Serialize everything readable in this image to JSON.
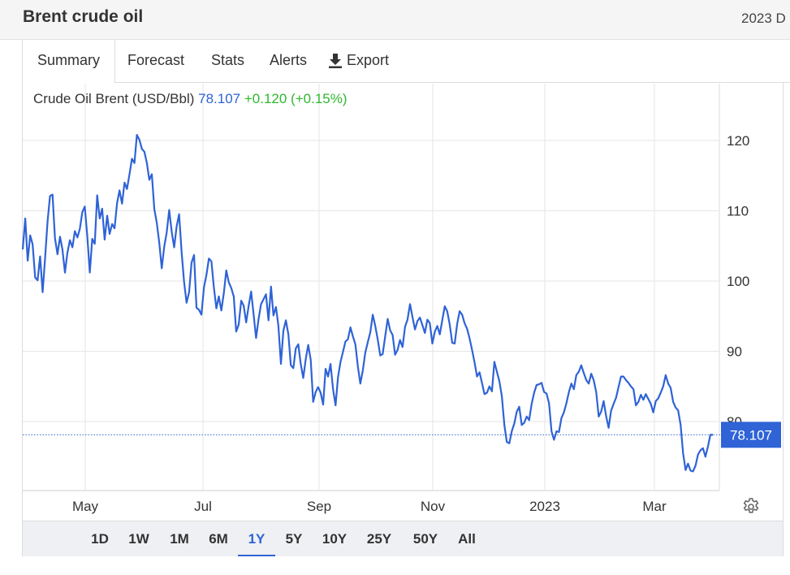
{
  "header": {
    "title": "Brent crude oil",
    "right_text": "2023 D"
  },
  "tabs": [
    {
      "label": "Summary"
    },
    {
      "label": "Forecast"
    },
    {
      "label": "Stats"
    },
    {
      "label": "Alerts"
    },
    {
      "label": "Export"
    }
  ],
  "legend": {
    "name": "Crude Oil Brent (USD/Bbl)",
    "price": "78.107",
    "change": "+0.120 (+0.15%)"
  },
  "ranges": [
    {
      "label": "1D"
    },
    {
      "label": "1W"
    },
    {
      "label": "1M"
    },
    {
      "label": "6M"
    },
    {
      "label": "1Y"
    },
    {
      "label": "5Y"
    },
    {
      "label": "10Y"
    },
    {
      "label": "25Y"
    },
    {
      "label": "50Y"
    },
    {
      "label": "All"
    }
  ],
  "active_range": "1Y",
  "colors": {
    "line": "#2f63d6",
    "price_label_bg": "#2f63d6",
    "change": "#2eb82e",
    "grid": "#e6e6e6"
  },
  "chart_data": {
    "type": "line",
    "title": "Crude Oil Brent (USD/Bbl)",
    "x_tick_labels": [
      "May",
      "Jul",
      "Sep",
      "Nov",
      "2023",
      "Mar"
    ],
    "y_tick_labels": [
      "80",
      "90",
      "100",
      "110",
      "120"
    ],
    "ylim": [
      70,
      130
    ],
    "grid": true,
    "last_value_label": "78.107",
    "series": [
      {
        "name": "Crude Oil Brent (USD/Bbl)",
        "x_range": [
          0,
          100
        ],
        "values": [
          104.5,
          108.9,
          102.9,
          106.5,
          105.2,
          100.5,
          100.1,
          103.5,
          98.4,
          103.2,
          108.5,
          112.1,
          112.3,
          106.1,
          103.8,
          106.3,
          104.5,
          101.2,
          104.0,
          105.8,
          104.8,
          107.1,
          106.2,
          107.4,
          109.8,
          110.6,
          106.4,
          101.2,
          106.0,
          105.3,
          112.2,
          108.9,
          110.3,
          105.9,
          109.3,
          106.7,
          108.1,
          107.5,
          111.1,
          112.9,
          111.0,
          114.0,
          113.1,
          115.2,
          117.4,
          116.8,
          120.8,
          120.1,
          118.8,
          118.4,
          116.8,
          114.4,
          115.2,
          110.2,
          108.3,
          105.4,
          101.8,
          104.9,
          106.9,
          110.1,
          107.0,
          104.8,
          107.8,
          109.5,
          104.1,
          99.9,
          96.9,
          98.4,
          102.6,
          103.7,
          96.2,
          95.9,
          95.2,
          99.1,
          100.9,
          103.2,
          102.8,
          99.1,
          96.1,
          97.8,
          95.8,
          98.3,
          101.5,
          99.8,
          99.0,
          97.8,
          92.8,
          93.8,
          97.2,
          96.5,
          94.1,
          96.4,
          98.5,
          95.2,
          91.9,
          94.6,
          96.7,
          97.4,
          98.1,
          94.4,
          99.2,
          95.1,
          96.3,
          93.6,
          88.2,
          92.9,
          94.4,
          92.4,
          88.0,
          87.6,
          90.4,
          91.0,
          88.2,
          86.2,
          88.9,
          90.9,
          88.8,
          82.8,
          84.2,
          84.9,
          84.1,
          82.4,
          87.5,
          86.4,
          88.2,
          84.6,
          82.3,
          86.3,
          88.5,
          89.9,
          91.4,
          91.7,
          93.4,
          92.1,
          91.0,
          87.8,
          85.4,
          87.3,
          89.8,
          91.3,
          92.7,
          95.2,
          93.6,
          91.7,
          89.4,
          89.6,
          92.1,
          94.6,
          93.0,
          92.3,
          89.5,
          90.2,
          91.6,
          90.6,
          93.5,
          94.5,
          96.7,
          94.9,
          93.1,
          94.3,
          94.8,
          93.7,
          92.6,
          94.5,
          94.0,
          91.1,
          92.8,
          93.6,
          92.4,
          94.4,
          96.4,
          95.7,
          93.8,
          91.2,
          91.1,
          93.9,
          95.7,
          95.2,
          94.0,
          93.2,
          91.8,
          90.2,
          88.4,
          86.4,
          87.0,
          85.5,
          83.9,
          84.1,
          85.0,
          84.3,
          88.5,
          87.1,
          85.7,
          83.6,
          79.5,
          77.1,
          76.9,
          78.6,
          79.7,
          81.4,
          82.1,
          79.5,
          79.8,
          80.7,
          80.2,
          82.5,
          84.1,
          85.2,
          85.3,
          85.5,
          84.2,
          84.0,
          82.6,
          78.6,
          77.4,
          78.6,
          78.5,
          80.5,
          81.3,
          82.6,
          84.2,
          85.4,
          84.6,
          86.6,
          87.1,
          88.0,
          86.9,
          85.9,
          85.4,
          86.8,
          85.9,
          84.2,
          80.7,
          81.4,
          82.9,
          80.8,
          79.1,
          81.5,
          82.5,
          83.4,
          84.9,
          86.4,
          86.4,
          85.9,
          85.5,
          85.0,
          84.6,
          82.3,
          82.8,
          83.8,
          83.1,
          83.9,
          83.2,
          82.5,
          81.3,
          82.9,
          83.3,
          84.1,
          85.0,
          86.6,
          85.4,
          84.8,
          82.8,
          82.0,
          81.6,
          79.5,
          75.5,
          73.1,
          74.0,
          73.0,
          72.9,
          73.7,
          75.3,
          75.9,
          76.2,
          75.0,
          76.4,
          78.1,
          78.1
        ]
      }
    ]
  }
}
